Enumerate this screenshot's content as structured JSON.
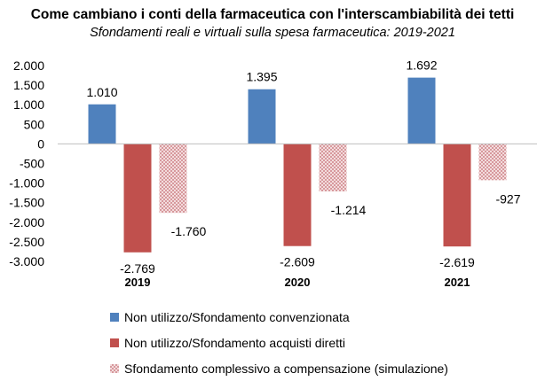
{
  "title": "Come cambiano i conti della farmaceutica con l'interscambiabilità dei tetti",
  "subtitle": "Sfondamenti reali e virtuali sulla spesa farmaceutica: 2019-2021",
  "chart_data": {
    "type": "bar",
    "categories": [
      "2019",
      "2020",
      "2021"
    ],
    "series": [
      {
        "name": "Non utilizzo/Sfondamento convenzionata",
        "values": [
          1010,
          1395,
          1692
        ],
        "labels": [
          "1.010",
          "1.395",
          "1.692"
        ],
        "color": "#4f81bd",
        "pattern": "solid"
      },
      {
        "name": "Non utilizzo/Sfondamento acquisti diretti",
        "values": [
          -2769,
          -2609,
          -2619
        ],
        "labels": [
          "-2.769",
          "-2.609",
          "-2.619"
        ],
        "color": "#c0504d",
        "pattern": "solid"
      },
      {
        "name": "Sfondamento complessivo a compensazione (simulazione)",
        "values": [
          -1760,
          -1214,
          -927
        ],
        "labels": [
          "-1.760",
          "-1.214",
          "-927"
        ],
        "color": "#e4b3b6",
        "pattern": "checker"
      }
    ],
    "ylim": [
      -3000,
      2000
    ],
    "yticks": [
      2000,
      1500,
      1000,
      500,
      0,
      -500,
      -1000,
      -1500,
      -2000,
      -2500,
      -3000
    ],
    "ytick_labels": [
      "2.000",
      "1.500",
      "1.000",
      "500",
      "0",
      "-500",
      "-1.000",
      "-1.500",
      "-2.000",
      "-2.500",
      "-3.000"
    ],
    "xlabel": "",
    "ylabel": "",
    "grid": false,
    "legend": "bottom"
  }
}
